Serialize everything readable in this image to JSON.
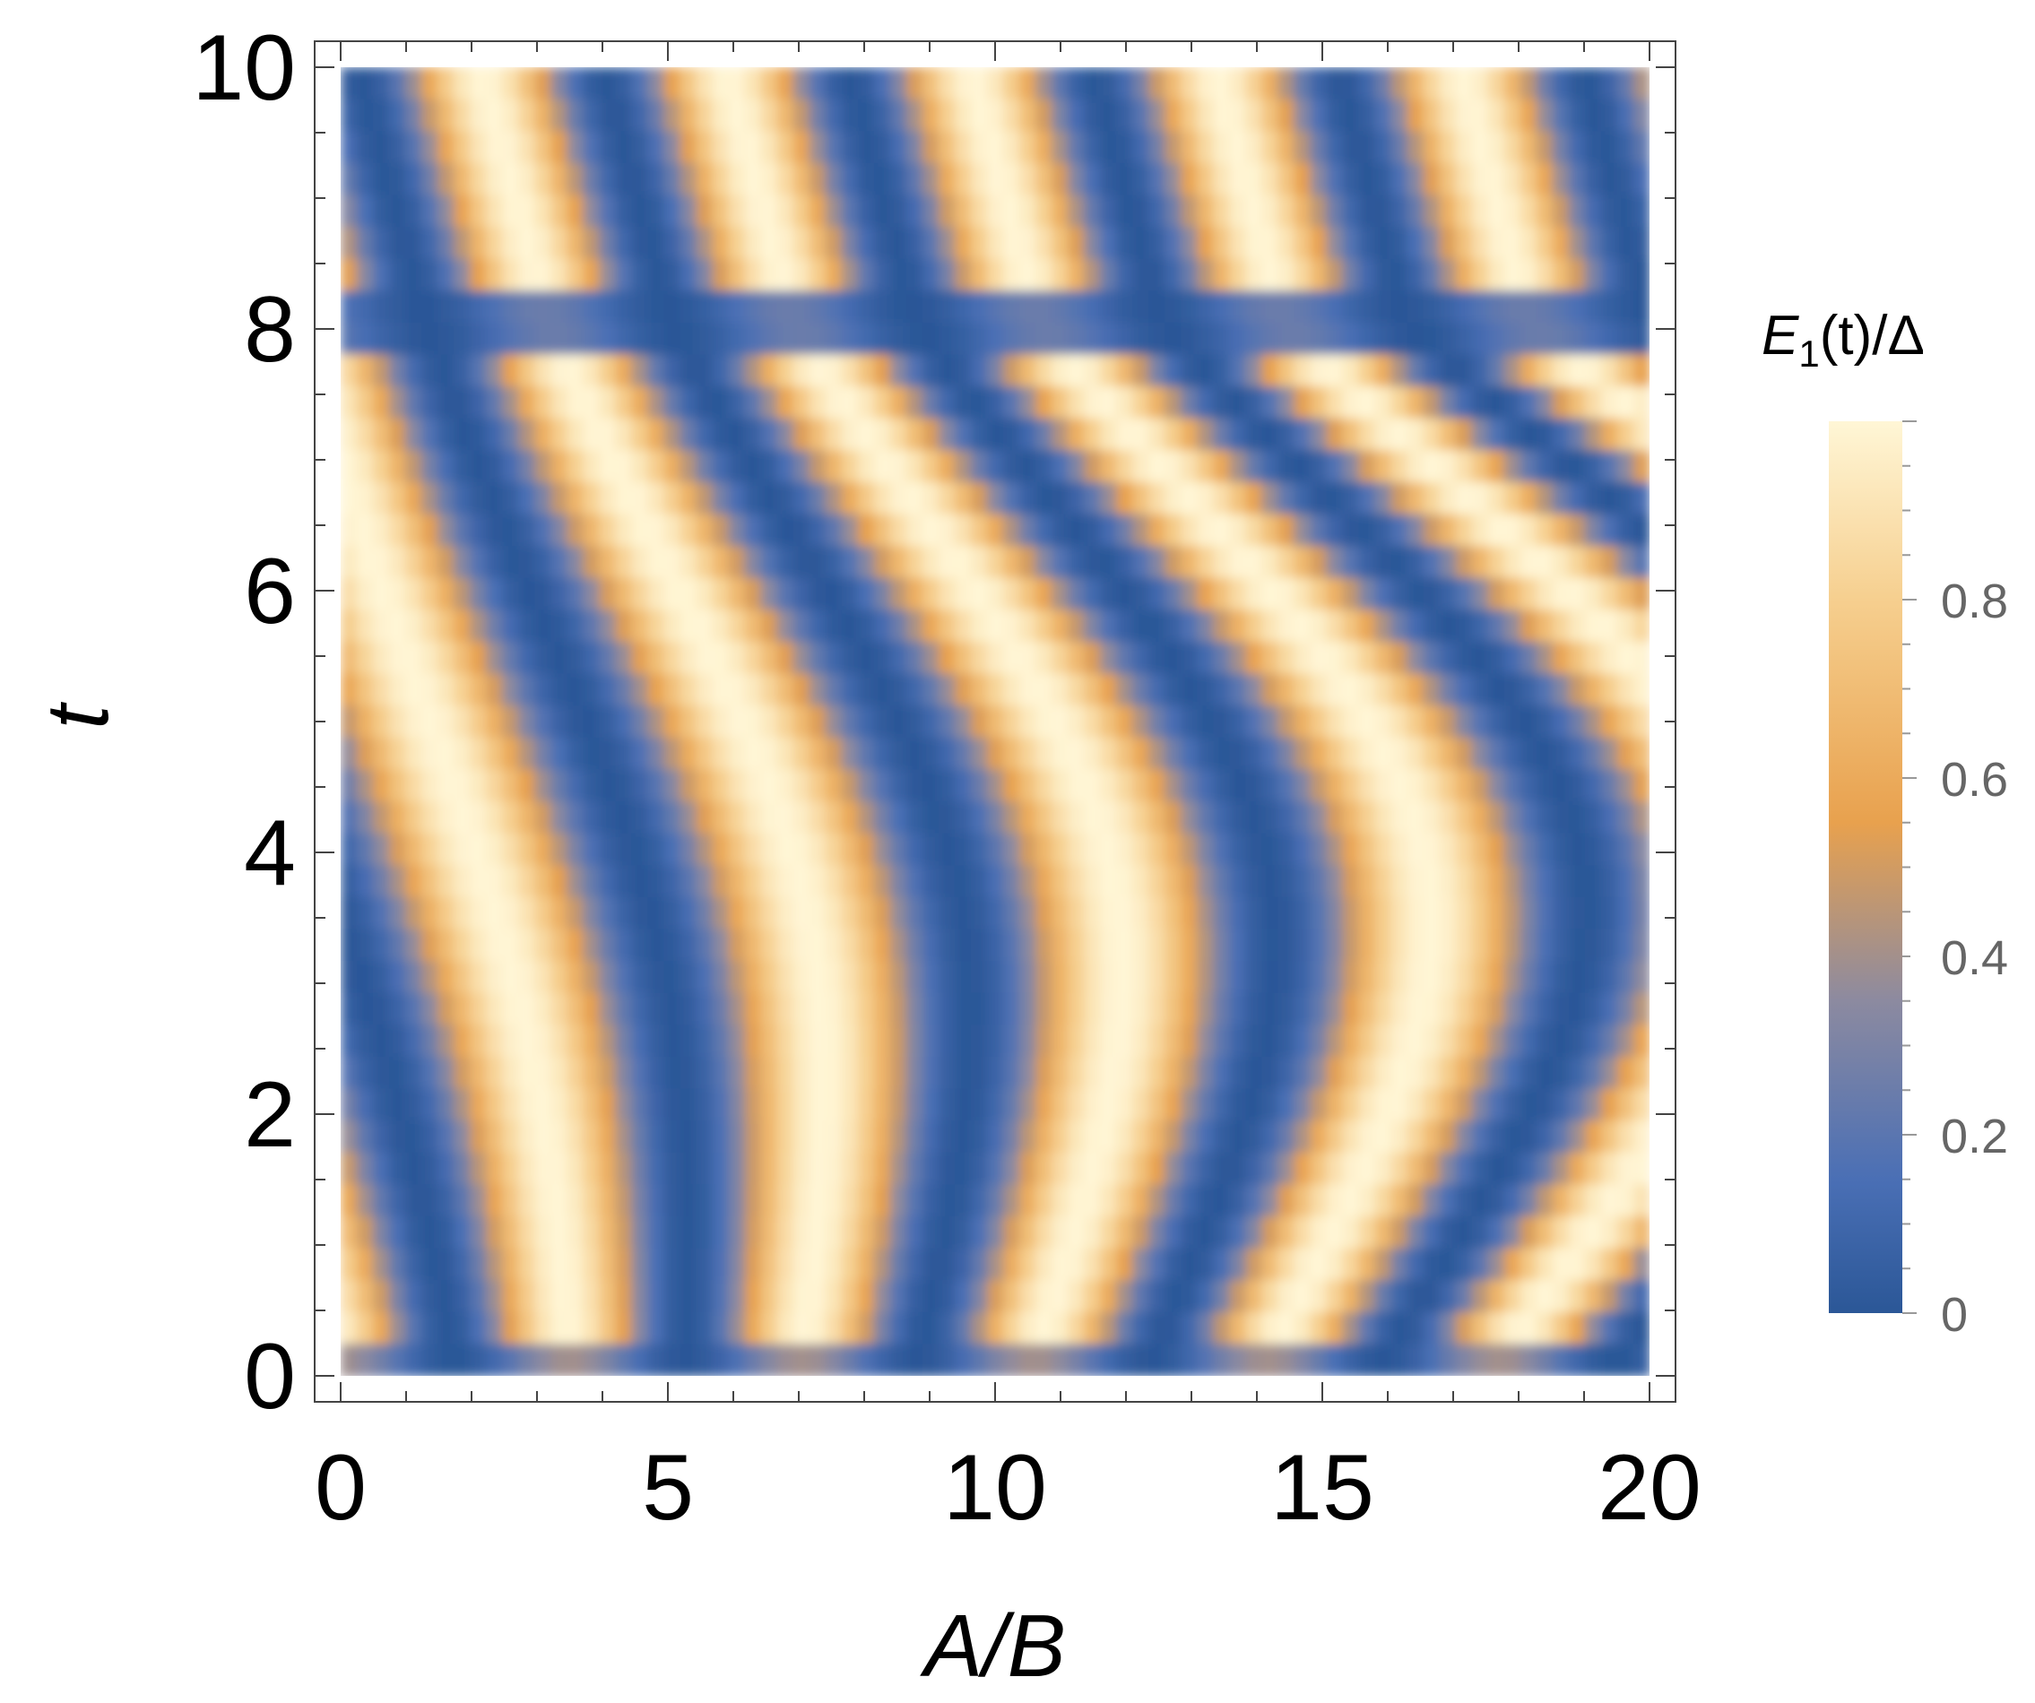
{
  "chart_data": {
    "type": "heatmap",
    "title": "",
    "xlabel": "A/B",
    "ylabel": "t",
    "xlim": [
      0,
      20
    ],
    "ylim": [
      0,
      10
    ],
    "x_ticks": [
      {
        "value": 0,
        "label": "0"
      },
      {
        "value": 5,
        "label": "5"
      },
      {
        "value": 10,
        "label": "10"
      },
      {
        "value": 15,
        "label": "15"
      },
      {
        "value": 20,
        "label": "20"
      }
    ],
    "y_ticks": [
      {
        "value": 0,
        "label": "0"
      },
      {
        "value": 2,
        "label": "2"
      },
      {
        "value": 4,
        "label": "4"
      },
      {
        "value": 6,
        "label": "6"
      },
      {
        "value": 8,
        "label": "8"
      },
      {
        "value": 10,
        "label": "10"
      }
    ],
    "colorbar": {
      "title_main": "E",
      "title_sub": "1",
      "title_rest": "(t)/Δ",
      "range": [
        0,
        1
      ],
      "ticks": [
        {
          "value": 0,
          "label": "0"
        },
        {
          "value": 0.2,
          "label": "0.2"
        },
        {
          "value": 0.4,
          "label": "0.4"
        },
        {
          "value": 0.6,
          "label": "0.6"
        },
        {
          "value": 0.8,
          "label": "0.8"
        }
      ],
      "colors": [
        "#2b5797",
        "#4a6fb5",
        "#8c8aa0",
        "#e8a14e",
        "#f6cf8f",
        "#fff6d6"
      ]
    },
    "grid": false,
    "field_description_values": {
      "rows": 41,
      "cols": 81
    }
  }
}
